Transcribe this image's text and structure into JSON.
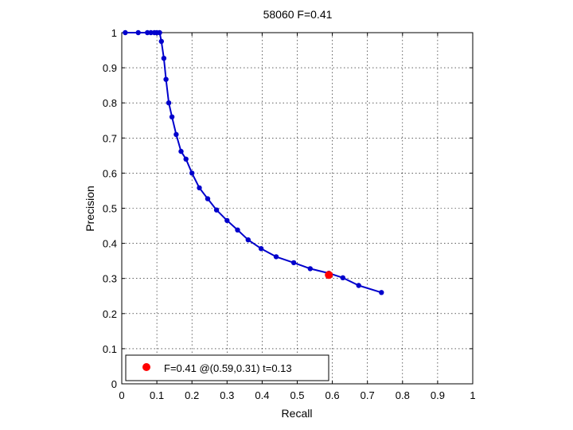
{
  "chart_data": {
    "type": "line",
    "title": "58060 F=0.41",
    "xlabel": "Recall",
    "ylabel": "Precision",
    "xlim": [
      0,
      1
    ],
    "ylim": [
      0,
      1
    ],
    "grid": true,
    "legend_position": "bottom-left",
    "xticks": [
      "0",
      "0.1",
      "0.2",
      "0.3",
      "0.4",
      "0.5",
      "0.6",
      "0.7",
      "0.8",
      "0.9",
      "1"
    ],
    "yticks": [
      "0",
      "0.1",
      "0.2",
      "0.3",
      "0.4",
      "0.5",
      "0.6",
      "0.7",
      "0.8",
      "0.9",
      "1"
    ],
    "series": [
      {
        "color": "#0000cc",
        "x": [
          0.01,
          0.047,
          0.073,
          0.083,
          0.093,
          0.1,
          0.108,
          0.113,
          0.12,
          0.126,
          0.134,
          0.143,
          0.155,
          0.169,
          0.183,
          0.2,
          0.221,
          0.245,
          0.27,
          0.3,
          0.33,
          0.36,
          0.397,
          0.44,
          0.49,
          0.537,
          0.59,
          0.63,
          0.675,
          0.74
        ],
        "y": [
          1.0,
          1.0,
          1.0,
          1.0,
          1.0,
          1.0,
          1.0,
          0.975,
          0.927,
          0.867,
          0.8,
          0.76,
          0.71,
          0.662,
          0.64,
          0.6,
          0.558,
          0.527,
          0.495,
          0.465,
          0.438,
          0.41,
          0.385,
          0.362,
          0.345,
          0.328,
          0.315,
          0.302,
          0.28,
          0.26
        ]
      }
    ],
    "highlight": {
      "x": 0.59,
      "y": 0.31,
      "color": "#ff0000",
      "label": "F=0.41 @(0.59,0.31) t=0.13"
    }
  }
}
